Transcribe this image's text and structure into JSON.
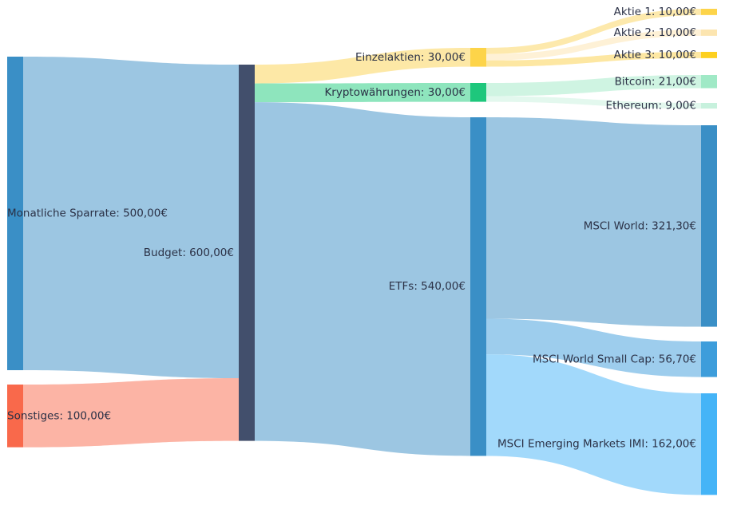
{
  "chart_data": {
    "type": "sankey",
    "currency": "€",
    "nodes": [
      {
        "id": "sparrate",
        "label": "Monatliche Sparrate: 500,00€",
        "value": 500.0,
        "color": "#3a8fc6"
      },
      {
        "id": "sonstiges",
        "label": "Sonstiges: 100,00€",
        "value": 100.0,
        "color": "#f9694b"
      },
      {
        "id": "budget",
        "label": "Budget: 600,00€",
        "value": 600.0,
        "color": "#424f6c"
      },
      {
        "id": "einzelaktien",
        "label": "Einzelaktien: 30,00€",
        "value": 30.0,
        "color": "#fdd449"
      },
      {
        "id": "krypto",
        "label": "Kryptowährungen: 30,00€",
        "value": 30.0,
        "color": "#1ec77c"
      },
      {
        "id": "etfs",
        "label": "ETFs: 540,00€",
        "value": 540.0,
        "color": "#3a8fc6"
      },
      {
        "id": "aktie1",
        "label": "Aktie 1: 10,00€",
        "value": 10.0,
        "color": "#fdd44a"
      },
      {
        "id": "aktie2",
        "label": "Aktie 2: 10,00€",
        "value": 10.0,
        "color": "#fce5b0"
      },
      {
        "id": "aktie3",
        "label": "Aktie 3: 10,00€",
        "value": 10.0,
        "color": "#fdd01f"
      },
      {
        "id": "bitcoin",
        "label": "Bitcoin: 21,00€",
        "value": 21.0,
        "color": "#a0e9c6"
      },
      {
        "id": "ethereum",
        "label": "Ethereum: 9,00€",
        "value": 9.0,
        "color": "#c7f1dd"
      },
      {
        "id": "msciworld",
        "label": "MSCI World: 321,30€",
        "value": 321.3,
        "color": "#3a8fc6"
      },
      {
        "id": "smallcap",
        "label": "MSCI World Small Cap: 56,70€",
        "value": 56.7,
        "color": "#3d9ddb"
      },
      {
        "id": "em",
        "label": "MSCI Emerging Markets IMI: 162,00€",
        "value": 162.0,
        "color": "#45b4f7"
      }
    ],
    "links": [
      {
        "source": "sparrate",
        "target": "budget",
        "value": 500.0,
        "color": "#9cc6e2"
      },
      {
        "source": "sonstiges",
        "target": "budget",
        "value": 100.0,
        "color": "#fcb4a5"
      },
      {
        "source": "budget",
        "target": "einzelaktien",
        "value": 30.0,
        "color": "#fde8a6"
      },
      {
        "source": "budget",
        "target": "krypto",
        "value": 30.0,
        "color": "#8ee5bd"
      },
      {
        "source": "budget",
        "target": "etfs",
        "value": 540.0,
        "color": "#9cc6e2"
      },
      {
        "source": "einzelaktien",
        "target": "aktie1",
        "value": 10.0,
        "color": "#fde9ac"
      },
      {
        "source": "einzelaktien",
        "target": "aktie2",
        "value": 10.0,
        "color": "#fef1d6"
      },
      {
        "source": "einzelaktien",
        "target": "aktie3",
        "value": 10.0,
        "color": "#fde7a2"
      },
      {
        "source": "krypto",
        "target": "bitcoin",
        "value": 21.0,
        "color": "#cff4e2"
      },
      {
        "source": "krypto",
        "target": "ethereum",
        "value": 9.0,
        "color": "#e3f8ee"
      },
      {
        "source": "etfs",
        "target": "msciworld",
        "value": 321.3,
        "color": "#9cc6e2"
      },
      {
        "source": "etfs",
        "target": "smallcap",
        "value": 56.7,
        "color": "#9dcded"
      },
      {
        "source": "etfs",
        "target": "em",
        "value": 162.0,
        "color": "#a2d9fb"
      }
    ]
  }
}
